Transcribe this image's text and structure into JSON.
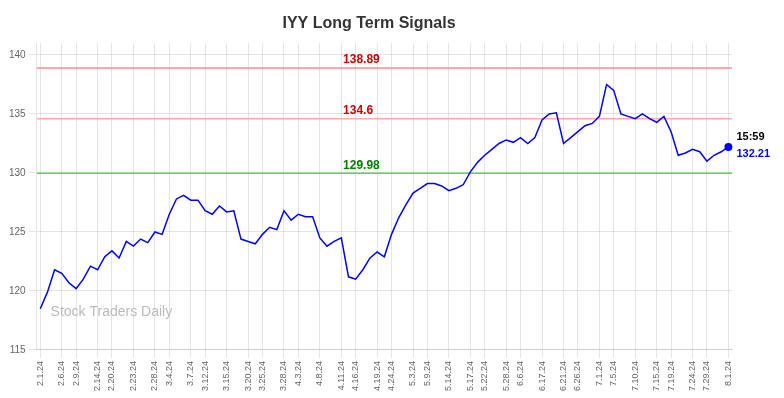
{
  "chart_data": {
    "type": "line",
    "title": "IYY Long Term Signals",
    "categories": [
      "2.1.24",
      null,
      null,
      "2.6.24",
      null,
      "2.9.24",
      null,
      null,
      "2.14.24",
      null,
      "2.20.24",
      null,
      null,
      "2.23.24",
      null,
      null,
      "2.28.24",
      null,
      "3.4.24",
      null,
      null,
      "3.7.24",
      null,
      "3.12.24",
      null,
      null,
      "3.15.24",
      null,
      null,
      "3.20.24",
      null,
      "3.25.24",
      null,
      null,
      "3.28.24",
      null,
      "4.3.24",
      null,
      null,
      "4.8.24",
      null,
      null,
      "4.11.24",
      null,
      "4.16.24",
      null,
      null,
      "4.19.24",
      null,
      "4.24.24",
      null,
      null,
      "5.3.24",
      null,
      "5.9.24",
      null,
      null,
      "5.14.24",
      null,
      null,
      "5.17.24",
      null,
      "5.22.24",
      null,
      null,
      "5.28.24",
      null,
      "6.6.24",
      null,
      null,
      "6.17.24",
      null,
      null,
      "6.21.24",
      null,
      "6.26.24",
      null,
      null,
      "7.1.24",
      null,
      "7.5.24",
      null,
      null,
      "7.10.24",
      null,
      null,
      "7.15.24",
      null,
      "7.19.24",
      null,
      null,
      "7.24.24",
      null,
      "7.29.24",
      null,
      null,
      "8.1.24"
    ],
    "values": [
      118.5,
      119.9,
      121.8,
      121.5,
      120.7,
      120.2,
      121.0,
      122.1,
      121.8,
      122.9,
      123.4,
      122.8,
      124.2,
      123.8,
      124.4,
      124.1,
      125.0,
      124.8,
      126.5,
      127.8,
      128.1,
      127.7,
      127.7,
      126.8,
      126.5,
      127.2,
      126.7,
      126.8,
      124.4,
      124.2,
      124.0,
      124.8,
      125.4,
      125.2,
      126.8,
      126.0,
      126.5,
      126.3,
      126.3,
      124.5,
      123.8,
      124.2,
      124.5,
      121.2,
      121.0,
      121.8,
      122.8,
      123.3,
      122.9,
      124.8,
      126.2,
      127.3,
      128.3,
      128.7,
      129.1,
      129.1,
      128.9,
      128.5,
      128.7,
      129.0,
      130.1,
      130.9,
      131.5,
      132.0,
      132.5,
      132.8,
      132.6,
      133.0,
      132.5,
      133.0,
      134.5,
      135.0,
      135.1,
      132.5,
      133.0,
      133.5,
      134.0,
      134.2,
      134.8,
      137.5,
      137.0,
      135.0,
      134.8,
      134.6,
      135.0,
      134.6,
      134.3,
      134.8,
      133.5,
      131.5,
      131.7,
      132.0,
      131.8,
      131.0,
      131.5,
      131.8,
      132.21
    ],
    "color": "blue",
    "ylim": [
      115,
      141
    ],
    "yticks": [
      115,
      120,
      125,
      130,
      135,
      140
    ],
    "grid": true,
    "annotations": [
      {
        "type": "hline",
        "y": 138.89,
        "color": "#ff8888",
        "label": "138.89",
        "label_color": "#cc0000"
      },
      {
        "type": "hline",
        "y": 134.6,
        "color": "#ffaaaa",
        "label": "134.6",
        "label_color": "#cc0000"
      },
      {
        "type": "hline",
        "y": 129.98,
        "color": "#66cc66",
        "label": "129.98",
        "label_color": "green"
      },
      {
        "type": "marker",
        "y": 132.21,
        "color": "blue",
        "labels": [
          "15:59",
          "132.21"
        ],
        "label_colors": [
          "black",
          "blue"
        ]
      },
      {
        "type": "watermark",
        "text": "Stock Traders Daily",
        "color": "#bbbbbb"
      }
    ]
  }
}
